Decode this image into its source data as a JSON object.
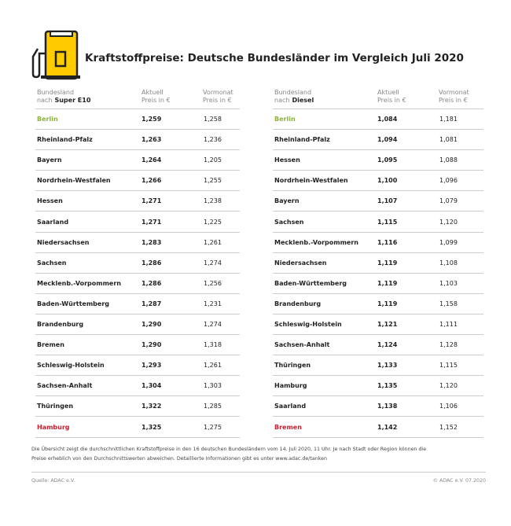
{
  "header": {
    "title": "Kraftstoffpreise: Deutsche Bundesländer im Vergleich Juli 2020"
  },
  "tables": [
    {
      "col_name": {
        "line1": "Bundesland",
        "prefix": "nach",
        "bold": "Super E10"
      },
      "col_current": {
        "line1": "Aktuell",
        "line2": "Preis in €"
      },
      "col_previous": {
        "line1": "Vormonat",
        "line2": "Preis in €"
      },
      "rows": [
        [
          "Berlin",
          "1,259",
          "1,258"
        ],
        [
          "Rheinland-Pfalz",
          "1,263",
          "1,236"
        ],
        [
          "Bayern",
          "1,264",
          "1,205"
        ],
        [
          "Nordrhein-Westfalen",
          "1,266",
          "1,255"
        ],
        [
          "Hessen",
          "1,271",
          "1,238"
        ],
        [
          "Saarland",
          "1,271",
          "1,225"
        ],
        [
          "Niedersachsen",
          "1,283",
          "1,261"
        ],
        [
          "Sachsen",
          "1,286",
          "1,274"
        ],
        [
          "Mecklenb.-Vorpommern",
          "1,286",
          "1,256"
        ],
        [
          "Baden-Württemberg",
          "1,287",
          "1,231"
        ],
        [
          "Brandenburg",
          "1,290",
          "1,274"
        ],
        [
          "Bremen",
          "1,290",
          "1,318"
        ],
        [
          "Schleswig-Holstein",
          "1,293",
          "1,261"
        ],
        [
          "Sachsen-Anhalt",
          "1,304",
          "1,303"
        ],
        [
          "Thüringen",
          "1,322",
          "1,285"
        ],
        [
          "Hamburg",
          "1,325",
          "1,275"
        ]
      ]
    },
    {
      "col_name": {
        "line1": "Bundesland",
        "prefix": "nach",
        "bold": "Diesel"
      },
      "col_current": {
        "line1": "Aktuell",
        "line2": "Preis in €"
      },
      "col_previous": {
        "line1": "Vormonat",
        "line2": "Preis in €"
      },
      "rows": [
        [
          "Berlin",
          "1,084",
          "1,181"
        ],
        [
          "Rheinland-Pfalz",
          "1,094",
          "1,081"
        ],
        [
          "Hessen",
          "1,095",
          "1,088"
        ],
        [
          "Nordrhein-Westfalen",
          "1,100",
          "1,096"
        ],
        [
          "Bayern",
          "1,107",
          "1,079"
        ],
        [
          "Sachsen",
          "1,115",
          "1,120"
        ],
        [
          "Mecklenb.-Vorpommern",
          "1,116",
          "1,099"
        ],
        [
          "Niedersachsen",
          "1,119",
          "1,108"
        ],
        [
          "Baden-Württemberg",
          "1,119",
          "1,103"
        ],
        [
          "Brandenburg",
          "1,119",
          "1,158"
        ],
        [
          "Schleswig-Holstein",
          "1,121",
          "1,111"
        ],
        [
          "Sachsen-Anhalt",
          "1,124",
          "1,128"
        ],
        [
          "Thüringen",
          "1,133",
          "1,115"
        ],
        [
          "Hamburg",
          "1,135",
          "1,120"
        ],
        [
          "Saarland",
          "1,138",
          "1,106"
        ],
        [
          "Bremen",
          "1,142",
          "1,152"
        ]
      ]
    }
  ],
  "footnote": [
    "Die Übersicht zeigt die durchschnittlichen Kraftstoffpreise in den 16 deutschen Bundesländern vom 14. Juli 2020, 11 Uhr.  Je nach Stadt oder Region können die",
    "Preise erheblich von den Durchschnittswerten abweichen. Detaillierte Informationen gibt es unter www.adac.de/tanken"
  ],
  "source": "Quelle: ADAC e.V.",
  "copyright": "© ADAC e.V. 07.2020"
}
